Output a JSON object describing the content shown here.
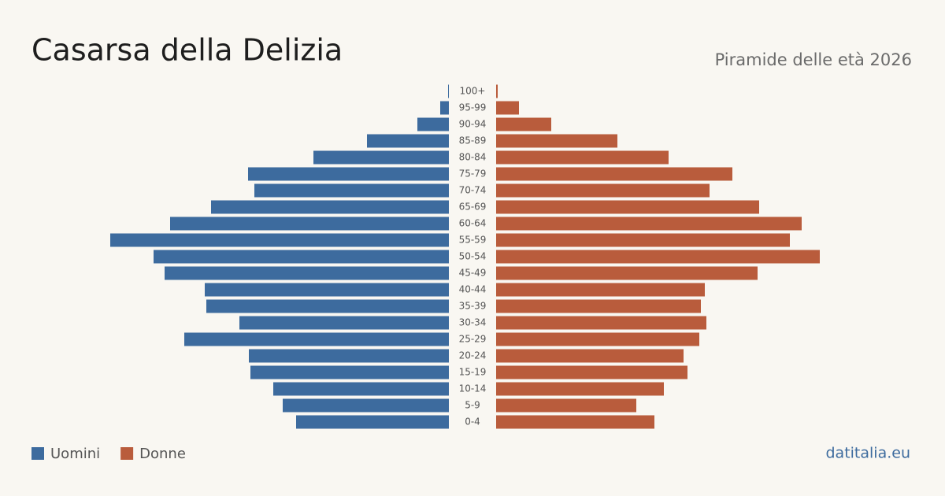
{
  "chart_data": {
    "type": "pyramid",
    "title": "Casarsa della Delizia",
    "subtitle": "Piramide delle età 2026",
    "source": "datitalia.eu",
    "categories": [
      "100+",
      "95-99",
      "90-94",
      "85-89",
      "80-84",
      "75-79",
      "70-74",
      "65-69",
      "60-64",
      "55-59",
      "50-54",
      "45-49",
      "40-44",
      "35-39",
      "30-34",
      "25-29",
      "20-24",
      "15-19",
      "10-14",
      "5-9",
      "0-4"
    ],
    "series": [
      {
        "name": "Uomini",
        "color": "#3d6b9e",
        "values": [
          1,
          11,
          40,
          104,
          172,
          255,
          247,
          302,
          354,
          430,
          375,
          361,
          310,
          308,
          266,
          336,
          254,
          252,
          223,
          211,
          194
        ]
      },
      {
        "name": "Donne",
        "color": "#b95c3c",
        "values": [
          2,
          29,
          70,
          154,
          219,
          300,
          271,
          334,
          388,
          373,
          411,
          332,
          265,
          260,
          267,
          258,
          238,
          243,
          213,
          178,
          201
        ]
      }
    ]
  }
}
